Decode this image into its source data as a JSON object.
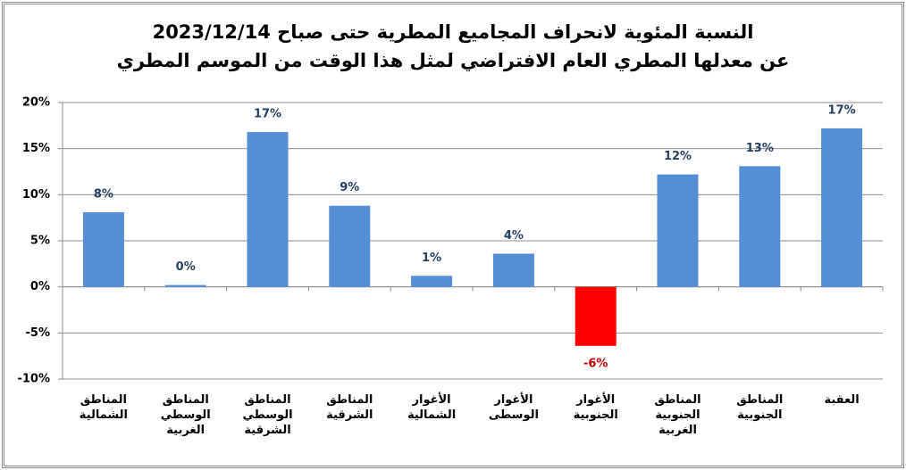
{
  "chart_data": {
    "type": "bar",
    "title": "النسبة المئوية لانحراف المجاميع المطرية حتى صباح 2023/12/14\nعن معدلها المطري العام الافتراضي لمثل هذا الوقت من الموسم المطري",
    "categories": [
      "المناطق\nالشمالية",
      "المناطق\nالوسطي\nالغربية",
      "المناطق\nالوسطي\nالشرقية",
      "المناطق\nالشرقية",
      "الأغوار\nالشمالية",
      "الأغوار\nالوسطى",
      "الأغوار\nالجنوبية",
      "المناطق\nالجنوبية\nالغربية",
      "المناطق\nالجنوبية",
      "العقبة"
    ],
    "values": [
      8.1,
      0.2,
      16.8,
      8.8,
      1.2,
      3.6,
      -6.4,
      12.2,
      13.1,
      17.2
    ],
    "value_labels": [
      "8%",
      "0%",
      "17%",
      "9%",
      "1%",
      "4%",
      "-6%",
      "12%",
      "13%",
      "17%"
    ],
    "color": "#558ed5",
    "negative_color": "#ff0000",
    "ylim": [
      -10,
      20
    ],
    "yticks": [
      {
        "value": -10,
        "label": "-10%"
      },
      {
        "value": -5,
        "label": "-5%"
      },
      {
        "value": 0,
        "label": "0%"
      },
      {
        "value": 5,
        "label": "5%"
      },
      {
        "value": 10,
        "label": "10%"
      },
      {
        "value": 15,
        "label": "15%"
      },
      {
        "value": 20,
        "label": "20%"
      }
    ],
    "grid": true
  }
}
